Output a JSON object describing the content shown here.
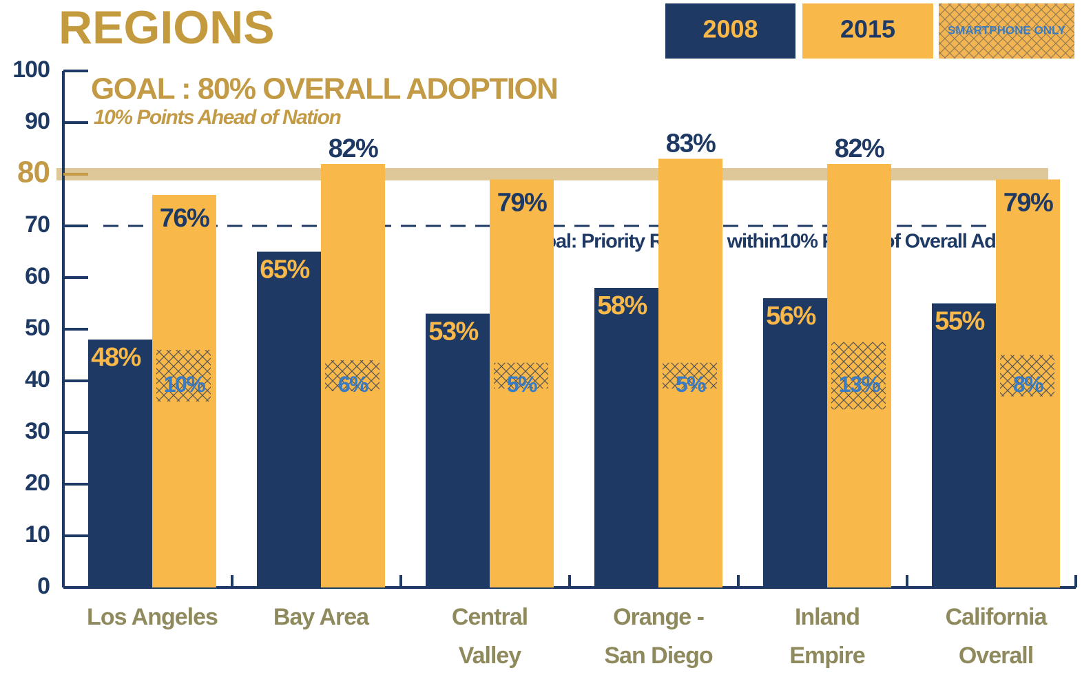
{
  "chart_data": {
    "type": "bar",
    "title": "REGIONS",
    "categories": [
      "Los Angeles",
      "Bay Area",
      "Central\nValley",
      "Orange -\nSan Diego",
      "Inland\nEmpire",
      "California\nOverall"
    ],
    "series": [
      {
        "name": "2008",
        "color": "#1e3a64",
        "label_color": "#f8b84a",
        "values": [
          48,
          65,
          53,
          58,
          56,
          55
        ],
        "value_labels": [
          "48%",
          "65%",
          "53%",
          "58%",
          "56%",
          "55%"
        ]
      },
      {
        "name": "2015",
        "color": "#f8b84a",
        "label_color": "#1e3a64",
        "values": [
          76,
          82,
          79,
          83,
          82,
          79
        ],
        "value_labels": [
          "76%",
          "82%",
          "79%",
          "83%",
          "82%",
          "79%"
        ]
      },
      {
        "name": "SMARTPHONE ONLY",
        "color": "#f3b552",
        "label_color": "#3a7cc4",
        "values": [
          10,
          6,
          5,
          5,
          13,
          8
        ],
        "value_labels": [
          "10%",
          "6%",
          "5%",
          "5%",
          "13%",
          "8%"
        ]
      }
    ],
    "ylim": [
      0,
      100
    ],
    "yticks": [
      0,
      10,
      20,
      30,
      40,
      50,
      60,
      70,
      80,
      90,
      100
    ],
    "reference_lines": [
      {
        "value": 80,
        "style": "band",
        "color": "#c39a45",
        "label": "GOAL : 80% OVERALL ADOPTION",
        "sublabel": "10% Points Ahead of Nation"
      },
      {
        "value": 70,
        "style": "dashed",
        "color": "#1e3a64",
        "label": "Goal: Priority Regions within10% Points of Overall Adoption"
      }
    ],
    "legend": "top-right"
  }
}
